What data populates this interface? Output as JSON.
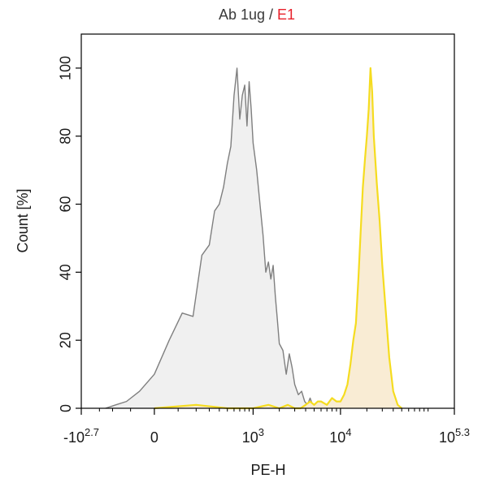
{
  "chart_data": {
    "type": "area",
    "title": {
      "prefix": "Ab 1ug",
      "separator": " / ",
      "suffix": "E1",
      "prefix_color": "#3a3a3a",
      "suffix_color": "#e8202a"
    },
    "xlabel": "PE-H",
    "ylabel": "Count [%]",
    "ylim": [
      0,
      110
    ],
    "yticks": [
      "0",
      "20",
      "40",
      "60",
      "80",
      "100"
    ],
    "ytick_values": [
      0,
      20,
      40,
      60,
      80,
      100
    ],
    "x_scale": "biexponential",
    "x_range": [
      "-10^2.7",
      "10^5.3"
    ],
    "xticks": [
      {
        "value": -501,
        "base": "-10",
        "exp": "2.7"
      },
      {
        "value": 0,
        "base": "0",
        "exp": ""
      },
      {
        "value": 1000,
        "base": "10",
        "exp": "3"
      },
      {
        "value": 10000,
        "base": "10",
        "exp": "4"
      },
      {
        "value": 199526,
        "base": "10",
        "exp": "5.3"
      }
    ],
    "series": [
      {
        "name": "Ab 1ug",
        "line_color": "#7f7f7f",
        "fill_color": "#f0f0f0",
        "x": [
          -250,
          -180,
          -120,
          -60,
          0,
          60,
          120,
          180,
          240,
          300,
          350,
          400,
          450,
          500,
          550,
          600,
          650,
          700,
          750,
          800,
          850,
          900,
          950,
          1000,
          1100,
          1200,
          1300,
          1400,
          1500,
          1600,
          1700,
          1800,
          1900,
          2000,
          2200,
          2400,
          2600,
          2800,
          3000,
          3300,
          3600,
          3900,
          4200,
          4500,
          4800,
          5100,
          5500
        ],
        "y": [
          0,
          1,
          2,
          5,
          10,
          20,
          28,
          27,
          45,
          48,
          58,
          60,
          65,
          72,
          77,
          92,
          100,
          85,
          92,
          95,
          83,
          96,
          88,
          78,
          70,
          60,
          51,
          40,
          43,
          38,
          42,
          33,
          26,
          19,
          17,
          10,
          16,
          12,
          7,
          4,
          5,
          2,
          1,
          3,
          1,
          1,
          0
        ]
      },
      {
        "name": "E1",
        "line_color": "#f5dc1f",
        "fill_color": "#f9ecd4",
        "x": [
          0,
          200,
          500,
          1000,
          1500,
          2000,
          2500,
          3000,
          3500,
          4000,
          4500,
          5000,
          5500,
          6000,
          7000,
          8000,
          9000,
          10000,
          11000,
          12000,
          13000,
          14000,
          15000,
          16000,
          17000,
          18000,
          19000,
          20000,
          21000,
          22000,
          23000,
          24000,
          26000,
          28000,
          30000,
          33000,
          36000,
          40000,
          45000,
          50000
        ],
        "y": [
          0,
          1,
          0,
          0,
          1,
          0,
          1,
          0,
          0,
          1,
          2,
          1,
          2,
          2,
          1,
          3,
          2,
          2,
          4,
          7,
          13,
          20,
          25,
          38,
          52,
          65,
          73,
          80,
          88,
          100,
          93,
          80,
          66,
          55,
          42,
          28,
          15,
          5,
          1,
          0
        ]
      }
    ],
    "grid": false,
    "legend": "none"
  }
}
